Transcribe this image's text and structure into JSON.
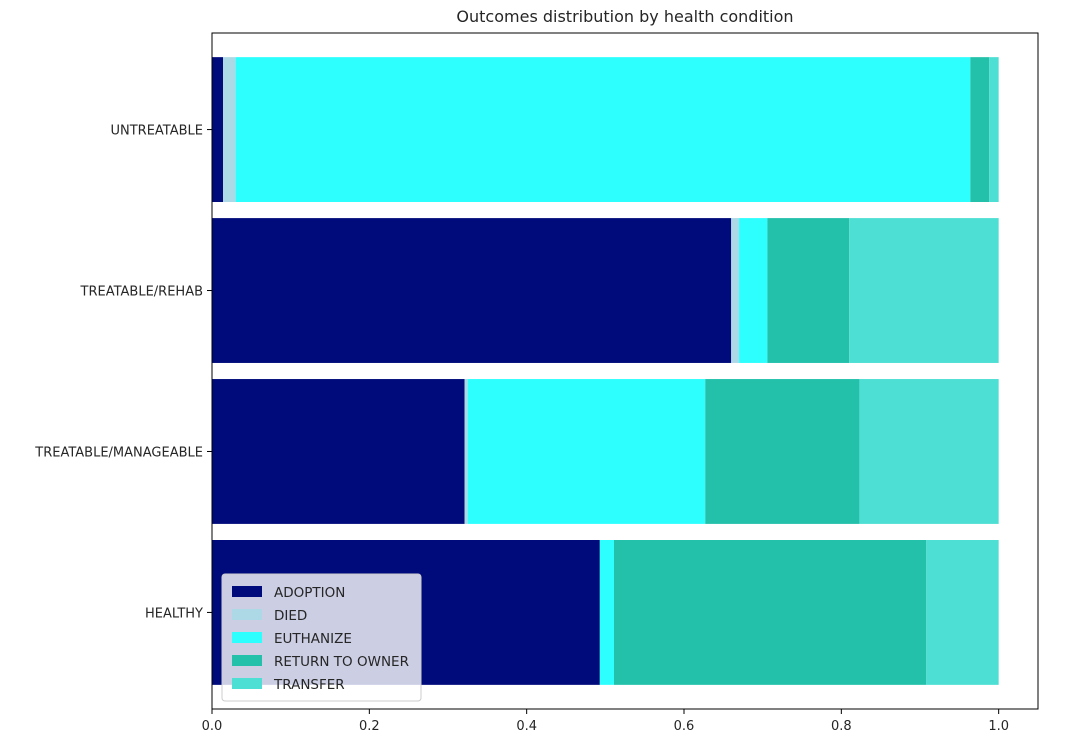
{
  "chart_data": {
    "type": "bar",
    "orientation": "horizontal",
    "stacked": true,
    "title": "Outcomes distribution by health condition",
    "xlabel": "",
    "ylabel": "",
    "categories": [
      "HEALTHY",
      "TREATABLE/MANAGEABLE",
      "TREATABLE/REHAB",
      "UNTREATABLE"
    ],
    "x_ticks": [
      "0.0",
      "0.2",
      "0.4",
      "0.6",
      "0.8",
      "1.0"
    ],
    "xlim": [
      0,
      1.05
    ],
    "grid": false,
    "legend_position": "lower-left",
    "series": [
      {
        "name": "ADOPTION",
        "color": "#000b7b",
        "values": [
          0.493,
          0.321,
          0.66,
          0.014
        ]
      },
      {
        "name": "DIED",
        "color": "#add8e6",
        "values": [
          0.0,
          0.004,
          0.01,
          0.016
        ]
      },
      {
        "name": "EUTHANIZE",
        "color": "#2dfffe",
        "values": [
          0.018,
          0.302,
          0.036,
          0.934
        ]
      },
      {
        "name": "RETURN TO OWNER",
        "color": "#23c1aa",
        "values": [
          0.397,
          0.196,
          0.104,
          0.024
        ]
      },
      {
        "name": "TRANSFER",
        "color": "#4ddfd3",
        "values": [
          0.092,
          0.177,
          0.19,
          0.012
        ]
      }
    ]
  }
}
